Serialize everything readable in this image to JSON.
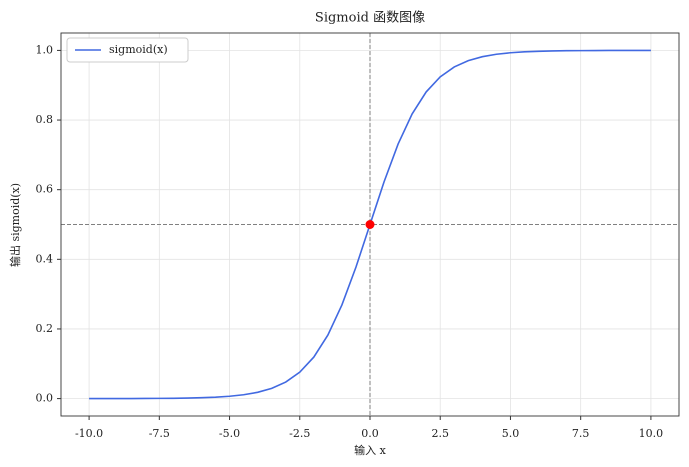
{
  "chart_data": {
    "type": "line",
    "title": "Sigmoid 函数图像",
    "x_label": "输入 x",
    "y_label": "输出 sigmoid(x)",
    "x": [
      -10,
      -9.5,
      -9,
      -8.5,
      -8,
      -7.5,
      -7,
      -6.5,
      -6,
      -5.5,
      -5,
      -4.5,
      -4,
      -3.5,
      -3,
      -2.5,
      -2,
      -1.5,
      -1,
      -0.5,
      0,
      0.5,
      1,
      1.5,
      2,
      2.5,
      3,
      3.5,
      4,
      4.5,
      5,
      5.5,
      6,
      6.5,
      7,
      7.5,
      8,
      8.5,
      9,
      9.5,
      10
    ],
    "series": [
      {
        "name": "sigmoid(x)",
        "color": "#4169e1",
        "values": [
          0.0,
          0.0001,
          0.0001,
          0.0002,
          0.0003,
          0.0006,
          0.0009,
          0.0015,
          0.0025,
          0.0041,
          0.0067,
          0.011,
          0.018,
          0.0293,
          0.0474,
          0.0759,
          0.1192,
          0.1824,
          0.2689,
          0.3775,
          0.5,
          0.6225,
          0.7311,
          0.8176,
          0.8808,
          0.9241,
          0.9526,
          0.9707,
          0.982,
          0.989,
          0.9933,
          0.9959,
          0.9975,
          0.9985,
          0.9991,
          0.9994,
          0.9997,
          0.9998,
          0.9999,
          0.9999,
          1.0
        ]
      }
    ],
    "marker": {
      "x": 0,
      "y": 0.5,
      "color": "#ff0000"
    },
    "hlines": [
      0.5
    ],
    "vlines": [
      0
    ],
    "ref_color": "#808080",
    "xlim": [
      -11,
      11
    ],
    "ylim": [
      -0.05,
      1.05
    ],
    "xticks": [
      {
        "value": -10,
        "label": "-10.0"
      },
      -7.5,
      {
        "value": -5,
        "label": "-5.0"
      },
      -2.5,
      {
        "value": 0,
        "label": "0.0"
      },
      2.5,
      {
        "value": 5,
        "label": "5.0"
      },
      7.5,
      {
        "value": 10,
        "label": "10.0"
      }
    ],
    "yticks": [
      {
        "value": 0,
        "label": "0.0"
      },
      0.2,
      0.4,
      0.6,
      0.8,
      {
        "value": 1,
        "label": "1.0"
      }
    ],
    "grid": true,
    "legend": "upper-left"
  }
}
